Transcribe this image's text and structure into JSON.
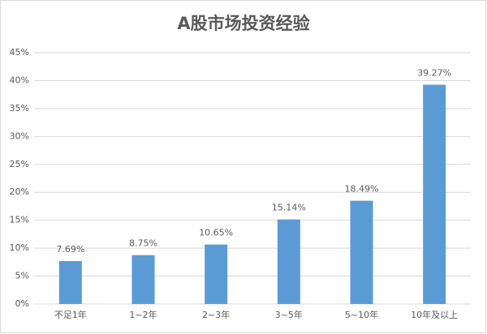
{
  "chart_data": {
    "type": "bar",
    "title": "A股市场投资经验",
    "categories": [
      "不足1年",
      "1~2年",
      "2~3年",
      "3~5年",
      "5~10年",
      "10年及以上"
    ],
    "values": [
      7.69,
      8.75,
      10.65,
      15.14,
      18.49,
      39.27
    ],
    "value_labels": [
      "7.69%",
      "8.75%",
      "10.65%",
      "15.14%",
      "18.49%",
      "39.27%"
    ],
    "color": "#5b9bd5",
    "ylim": [
      0,
      45
    ],
    "yticks": [
      {
        "value": 0,
        "label": "0%"
      },
      {
        "value": 5,
        "label": "5%"
      },
      {
        "value": 10,
        "label": "10%"
      },
      {
        "value": 15,
        "label": "15%"
      },
      {
        "value": 20,
        "label": "20%"
      },
      {
        "value": 25,
        "label": "25%"
      },
      {
        "value": 30,
        "label": "30%"
      },
      {
        "value": 35,
        "label": "35%"
      },
      {
        "value": 40,
        "label": "40%"
      },
      {
        "value": 45,
        "label": "45%"
      }
    ],
    "grid": true
  }
}
